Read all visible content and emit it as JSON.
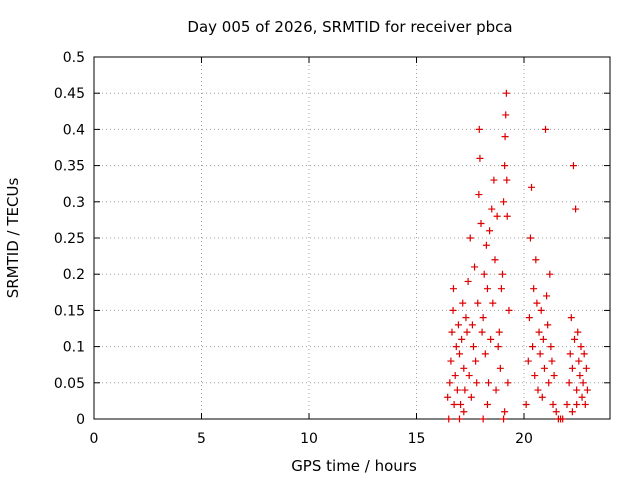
{
  "chart_data": {
    "type": "scatter",
    "title": "Day 005 of 2026, SRMTID for receiver pbca",
    "xlabel": "GPS time / hours",
    "ylabel": "SRMTID / TECUs",
    "xlim": [
      0,
      24
    ],
    "ylim": [
      0,
      0.5
    ],
    "xticks": [
      0,
      5,
      10,
      15,
      20
    ],
    "yticks": [
      0,
      0.05,
      0.1,
      0.15,
      0.2,
      0.25,
      0.3,
      0.35,
      0.4,
      0.45,
      0.5
    ],
    "ytick_labels": [
      "0",
      "0.05",
      "0.1",
      "0.15",
      "0.2",
      "0.25",
      "0.3",
      "0.35",
      "0.4",
      "0.45",
      "0.5"
    ],
    "grid": true,
    "marker": "+",
    "color": "#dd0000",
    "series": [
      {
        "name": "SRMTID",
        "points": [
          [
            16.55,
            0.05
          ],
          [
            16.6,
            0.08
          ],
          [
            16.65,
            0.12
          ],
          [
            16.7,
            0.15
          ],
          [
            16.72,
            0.18
          ],
          [
            16.75,
            0.02
          ],
          [
            16.8,
            0.06
          ],
          [
            16.85,
            0.1
          ],
          [
            16.9,
            0.04
          ],
          [
            16.95,
            0.13
          ],
          [
            17.0,
            0.09
          ],
          [
            17.05,
            0.02
          ],
          [
            17.1,
            0.11
          ],
          [
            17.15,
            0.16
          ],
          [
            17.2,
            0.07
          ],
          [
            17.25,
            0.04
          ],
          [
            17.3,
            0.14
          ],
          [
            17.35,
            0.12
          ],
          [
            17.4,
            0.19
          ],
          [
            17.45,
            0.06
          ],
          [
            17.5,
            0.25
          ],
          [
            17.55,
            0.03
          ],
          [
            17.6,
            0.13
          ],
          [
            17.65,
            0.1
          ],
          [
            17.7,
            0.21
          ],
          [
            17.75,
            0.08
          ],
          [
            17.8,
            0.05
          ],
          [
            17.85,
            0.16
          ],
          [
            17.9,
            0.31
          ],
          [
            17.92,
            0.4
          ],
          [
            17.95,
            0.36
          ],
          [
            18.0,
            0.27
          ],
          [
            18.05,
            0.12
          ],
          [
            18.1,
            0.14
          ],
          [
            18.15,
            0.2
          ],
          [
            18.2,
            0.09
          ],
          [
            18.25,
            0.24
          ],
          [
            18.3,
            0.18
          ],
          [
            18.35,
            0.05
          ],
          [
            18.4,
            0.26
          ],
          [
            18.45,
            0.11
          ],
          [
            18.5,
            0.29
          ],
          [
            18.55,
            0.16
          ],
          [
            18.6,
            0.33
          ],
          [
            18.65,
            0.22
          ],
          [
            18.7,
            0.04
          ],
          [
            18.75,
            0.28
          ],
          [
            18.8,
            0.1
          ],
          [
            18.85,
            0.12
          ],
          [
            18.9,
            0.07
          ],
          [
            18.95,
            0.18
          ],
          [
            19.0,
            0.2
          ],
          [
            19.05,
            0.3
          ],
          [
            19.1,
            0.35
          ],
          [
            19.12,
            0.39
          ],
          [
            19.15,
            0.42
          ],
          [
            19.18,
            0.45
          ],
          [
            19.2,
            0.33
          ],
          [
            19.22,
            0.28
          ],
          [
            19.25,
            0.05
          ],
          [
            19.3,
            0.15
          ],
          [
            16.5,
            0.0
          ],
          [
            16.45,
            0.03
          ],
          [
            17.0,
            0.0
          ],
          [
            17.2,
            0.01
          ],
          [
            18.1,
            0.0
          ],
          [
            18.3,
            0.02
          ],
          [
            19.05,
            0.0
          ],
          [
            19.1,
            0.01
          ],
          [
            20.1,
            0.02
          ],
          [
            20.2,
            0.08
          ],
          [
            20.25,
            0.14
          ],
          [
            20.3,
            0.25
          ],
          [
            20.35,
            0.32
          ],
          [
            20.4,
            0.1
          ],
          [
            20.45,
            0.18
          ],
          [
            20.5,
            0.06
          ],
          [
            20.55,
            0.22
          ],
          [
            20.6,
            0.16
          ],
          [
            20.65,
            0.04
          ],
          [
            20.7,
            0.12
          ],
          [
            20.75,
            0.09
          ],
          [
            20.8,
            0.15
          ],
          [
            20.85,
            0.03
          ],
          [
            20.9,
            0.11
          ],
          [
            20.95,
            0.07
          ],
          [
            21.0,
            0.4
          ],
          [
            21.05,
            0.17
          ],
          [
            21.1,
            0.13
          ],
          [
            21.15,
            0.05
          ],
          [
            21.2,
            0.2
          ],
          [
            21.25,
            0.1
          ],
          [
            21.3,
            0.08
          ],
          [
            21.35,
            0.02
          ],
          [
            21.4,
            0.06
          ],
          [
            21.5,
            0.01
          ],
          [
            21.6,
            0.0
          ],
          [
            21.7,
            0.0
          ],
          [
            21.8,
            0.0
          ],
          [
            22.0,
            0.02
          ],
          [
            22.1,
            0.05
          ],
          [
            22.15,
            0.09
          ],
          [
            22.2,
            0.14
          ],
          [
            22.25,
            0.07
          ],
          [
            22.3,
            0.35
          ],
          [
            22.35,
            0.11
          ],
          [
            22.4,
            0.29
          ],
          [
            22.45,
            0.04
          ],
          [
            22.5,
            0.12
          ],
          [
            22.55,
            0.08
          ],
          [
            22.6,
            0.06
          ],
          [
            22.65,
            0.1
          ],
          [
            22.7,
            0.03
          ],
          [
            22.75,
            0.05
          ],
          [
            22.8,
            0.09
          ],
          [
            22.85,
            0.02
          ],
          [
            22.9,
            0.07
          ],
          [
            22.95,
            0.04
          ],
          [
            22.25,
            0.01
          ],
          [
            22.45,
            0.02
          ]
        ]
      }
    ]
  }
}
